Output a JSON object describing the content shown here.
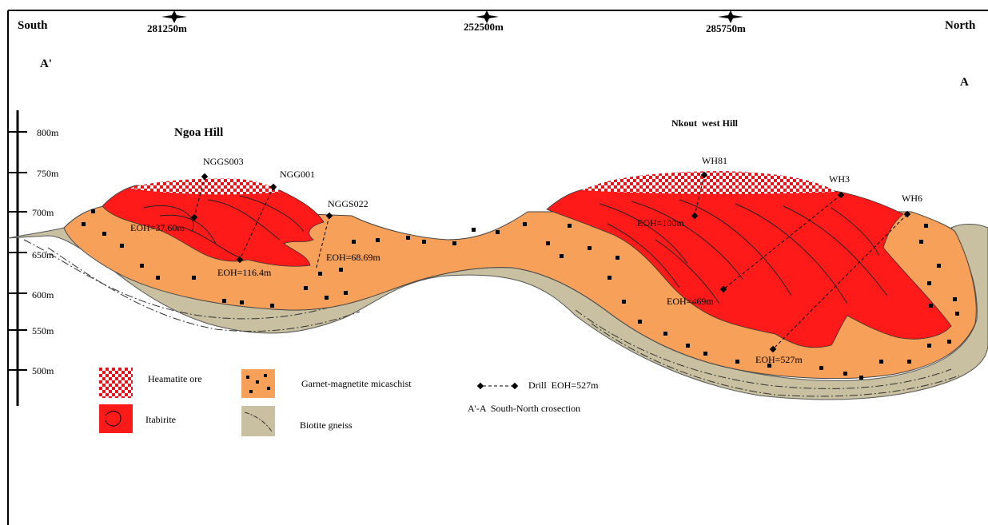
{
  "header": {
    "left_label": "South",
    "right_label": "North",
    "left_point": "A'",
    "right_point": "A",
    "coords": [
      "281250m",
      "252500m",
      "285750m"
    ]
  },
  "scale": {
    "ticks": [
      "800m",
      "750m",
      "700m",
      "650m",
      "600m",
      "550m",
      "500m"
    ]
  },
  "hills": {
    "left": "Ngoa Hill",
    "right": "Nkout  west Hill"
  },
  "drills": {
    "names": [
      "NGGS003",
      "NGG001",
      "NGGS022",
      "WH81",
      "WH3",
      "WH6"
    ],
    "eoh": [
      "EOH=37.60m",
      "EOH=116.4m",
      "EOH=68.69m",
      "EOH=100m",
      "EOH=469m",
      "EOH=527m"
    ]
  },
  "legend": {
    "heamatite": "Heamatite ore",
    "itabirite": "Itabirite",
    "garnet": "Garnet-magnetite micaschist",
    "biotite": "Biotite gneiss",
    "drill": "Drill  EOH=527m",
    "section": "A'-A  South-North crosection"
  },
  "colors": {
    "heamatite": "#e8141c",
    "itabirite": "#ff1a1a",
    "garnet": "#f7a05a",
    "biotite": "#c8c0a0",
    "frame": "#000000"
  }
}
